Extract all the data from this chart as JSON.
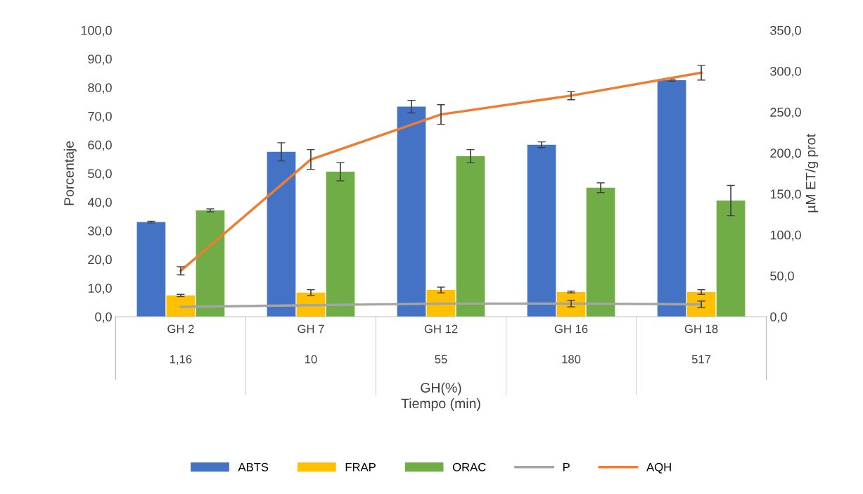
{
  "chart_data": {
    "type": "bar",
    "categories": [
      "GH 2\n\n1,16",
      "GH 7\n\n10",
      "GH 12\n\n55",
      "GH 16\n\n180",
      "GH 18\n\n517"
    ],
    "xlabel": "GH(%)\nTiempo (min)",
    "ylabel": "Porcentaje",
    "y2label": "µM ET/g prot",
    "series": [
      {
        "name": "ABTS",
        "color": "#4472c4",
        "values": [
          33.0,
          57.5,
          73.3,
          60.0,
          82.5
        ],
        "errors": [
          0.3,
          3.2,
          2.2,
          1.0,
          0.3
        ]
      },
      {
        "name": "FRAP",
        "color": "#ffc000",
        "values": [
          7.4,
          8.4,
          9.3,
          8.6,
          8.6
        ],
        "errors": [
          0.4,
          1.0,
          1.0,
          0.3,
          0.8
        ]
      },
      {
        "name": "ORAC",
        "color": "#70ad47",
        "values": [
          37.1,
          50.6,
          56.0,
          45.0,
          40.5
        ],
        "errors": [
          0.5,
          3.2,
          2.3,
          1.7,
          5.3
        ]
      },
      {
        "name": "P",
        "type": "line",
        "axis": "y2",
        "color": "#a5a5a5",
        "values": [
          12,
          14,
          16,
          16,
          15
        ],
        "errors": [
          null,
          null,
          null,
          4,
          4
        ]
      },
      {
        "name": "AQH",
        "type": "line",
        "axis": "y2",
        "color": "#ed7d31",
        "values": [
          56,
          192,
          247,
          270,
          298
        ],
        "errors": [
          5,
          12,
          12,
          5,
          9
        ]
      }
    ],
    "ylim": [
      0,
      100
    ],
    "yticks": [
      {
        "value": 0,
        "label": "0,0"
      },
      {
        "value": 10,
        "label": "10,0"
      },
      {
        "value": 20,
        "label": "20,0"
      },
      {
        "value": 30,
        "label": "30,0"
      },
      {
        "value": 40,
        "label": "40,0"
      },
      {
        "value": 50,
        "label": "50,0"
      },
      {
        "value": 60,
        "label": "60,0"
      },
      {
        "value": 70,
        "label": "70,0"
      },
      {
        "value": 80,
        "label": "80,0"
      },
      {
        "value": 90,
        "label": "90,0"
      },
      {
        "value": 100,
        "label": "100,0"
      }
    ],
    "y2lim": [
      0,
      350
    ],
    "y2ticks": [
      {
        "value": 0,
        "label": "0,0"
      },
      {
        "value": 50,
        "label": "50,0"
      },
      {
        "value": 100,
        "label": "100,0"
      },
      {
        "value": 150,
        "label": "150,0"
      },
      {
        "value": 200,
        "label": "200,0"
      },
      {
        "value": 250,
        "label": "250,0"
      },
      {
        "value": 300,
        "label": "300,0"
      },
      {
        "value": 350,
        "label": "350,0"
      }
    ],
    "legend": "bottom",
    "grid": false
  }
}
